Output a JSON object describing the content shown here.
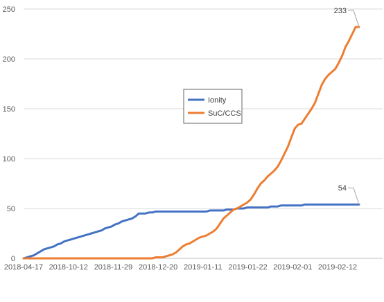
{
  "chart_data": {
    "type": "line",
    "title": "",
    "xlabel": "",
    "ylabel": "",
    "ylim": [
      0,
      250
    ],
    "y_ticks": [
      0,
      50,
      100,
      150,
      200,
      250
    ],
    "x_tick_labels": [
      "2018-04-17",
      "2018-10-12",
      "2018-11-29",
      "2018-12-20",
      "2019-01-11",
      "2019-01-22",
      "2019-02-01",
      "2019-02-12"
    ],
    "grid": "horizontal",
    "legend_placement": "center",
    "series": [
      {
        "name": "Ionity",
        "color": "#4472C4",
        "values": [
          0,
          1,
          2,
          3,
          5,
          7,
          9,
          10,
          11,
          12,
          14,
          15,
          17,
          18,
          19,
          20,
          21,
          22,
          23,
          24,
          25,
          26,
          27,
          28,
          30,
          31,
          32,
          34,
          35,
          37,
          38,
          39,
          40,
          42,
          45,
          45,
          45,
          46,
          46,
          47,
          47,
          47,
          47,
          47,
          47,
          47,
          47,
          47,
          47,
          47,
          47,
          47,
          47,
          47,
          47,
          48,
          48,
          48,
          48,
          48,
          49,
          49,
          49,
          50,
          50,
          50,
          51,
          51,
          51,
          51,
          51,
          51,
          51,
          52,
          52,
          52,
          53,
          53,
          53,
          53,
          53,
          53,
          53,
          54,
          54,
          54,
          54,
          54,
          54,
          54,
          54,
          54,
          54,
          54,
          54,
          54,
          54,
          54,
          54,
          54
        ],
        "end_label": "54"
      },
      {
        "name": "SuC/CCS",
        "color": "#ED7D31",
        "values": [
          0,
          0,
          0,
          0,
          0,
          0,
          0,
          0,
          0,
          0,
          0,
          0,
          0,
          0,
          0,
          0,
          0,
          0,
          0,
          0,
          0,
          0,
          0,
          0,
          0,
          0,
          0,
          0,
          0,
          0,
          0,
          0,
          0,
          0,
          0,
          0,
          0,
          0,
          0,
          1,
          1,
          1,
          2,
          3,
          4,
          6,
          9,
          12,
          14,
          15,
          17,
          19,
          21,
          22,
          23,
          25,
          27,
          30,
          35,
          40,
          43,
          46,
          49,
          50,
          52,
          54,
          56,
          59,
          64,
          70,
          75,
          78,
          82,
          85,
          88,
          92,
          98,
          105,
          112,
          121,
          130,
          134,
          135,
          140,
          145,
          150,
          156,
          165,
          174,
          180,
          184,
          187,
          190,
          196,
          203,
          212,
          218,
          225,
          232,
          232
        ],
        "end_label": "233"
      }
    ]
  }
}
